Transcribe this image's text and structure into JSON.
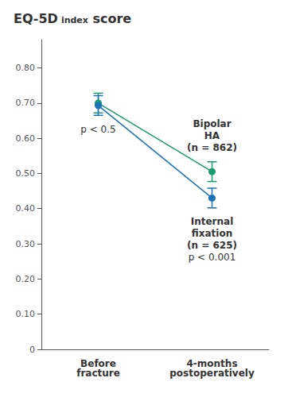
{
  "chart_data": {
    "type": "line",
    "title": [
      "EQ-5D",
      "index",
      " score"
    ],
    "categories": [
      "Before\nfracture",
      "4-months\npostoperatively"
    ],
    "series": [
      {
        "name": "Bipolar\nHA\n(n = 862)",
        "color": "#1a9b6e",
        "values": [
          0.7,
          0.505
        ],
        "errors": [
          0.028,
          0.028
        ],
        "marker": "circle"
      },
      {
        "name": "Internal\nfixation\n(n = 625)",
        "color": "#1a72b8",
        "values": [
          0.693,
          0.43
        ],
        "errors": [
          0.028,
          0.028
        ],
        "marker": "circle"
      }
    ],
    "annotations": [
      "p < 0.5",
      "p < 0.001"
    ],
    "ylim": [
      0,
      0.88
    ],
    "yticks": [
      0,
      {
        "value": 0.1,
        "label": "0.10"
      },
      {
        "value": 0.2,
        "label": "0.20"
      },
      {
        "value": 0.3,
        "label": "0.30"
      },
      {
        "value": 0.4,
        "label": "0.40"
      },
      {
        "value": 0.5,
        "label": "0.50"
      },
      {
        "value": 0.6,
        "label": "0.60"
      },
      {
        "value": 0.7,
        "label": "0.70"
      },
      {
        "value": 0.8,
        "label": "0.80"
      }
    ],
    "grid": false
  }
}
